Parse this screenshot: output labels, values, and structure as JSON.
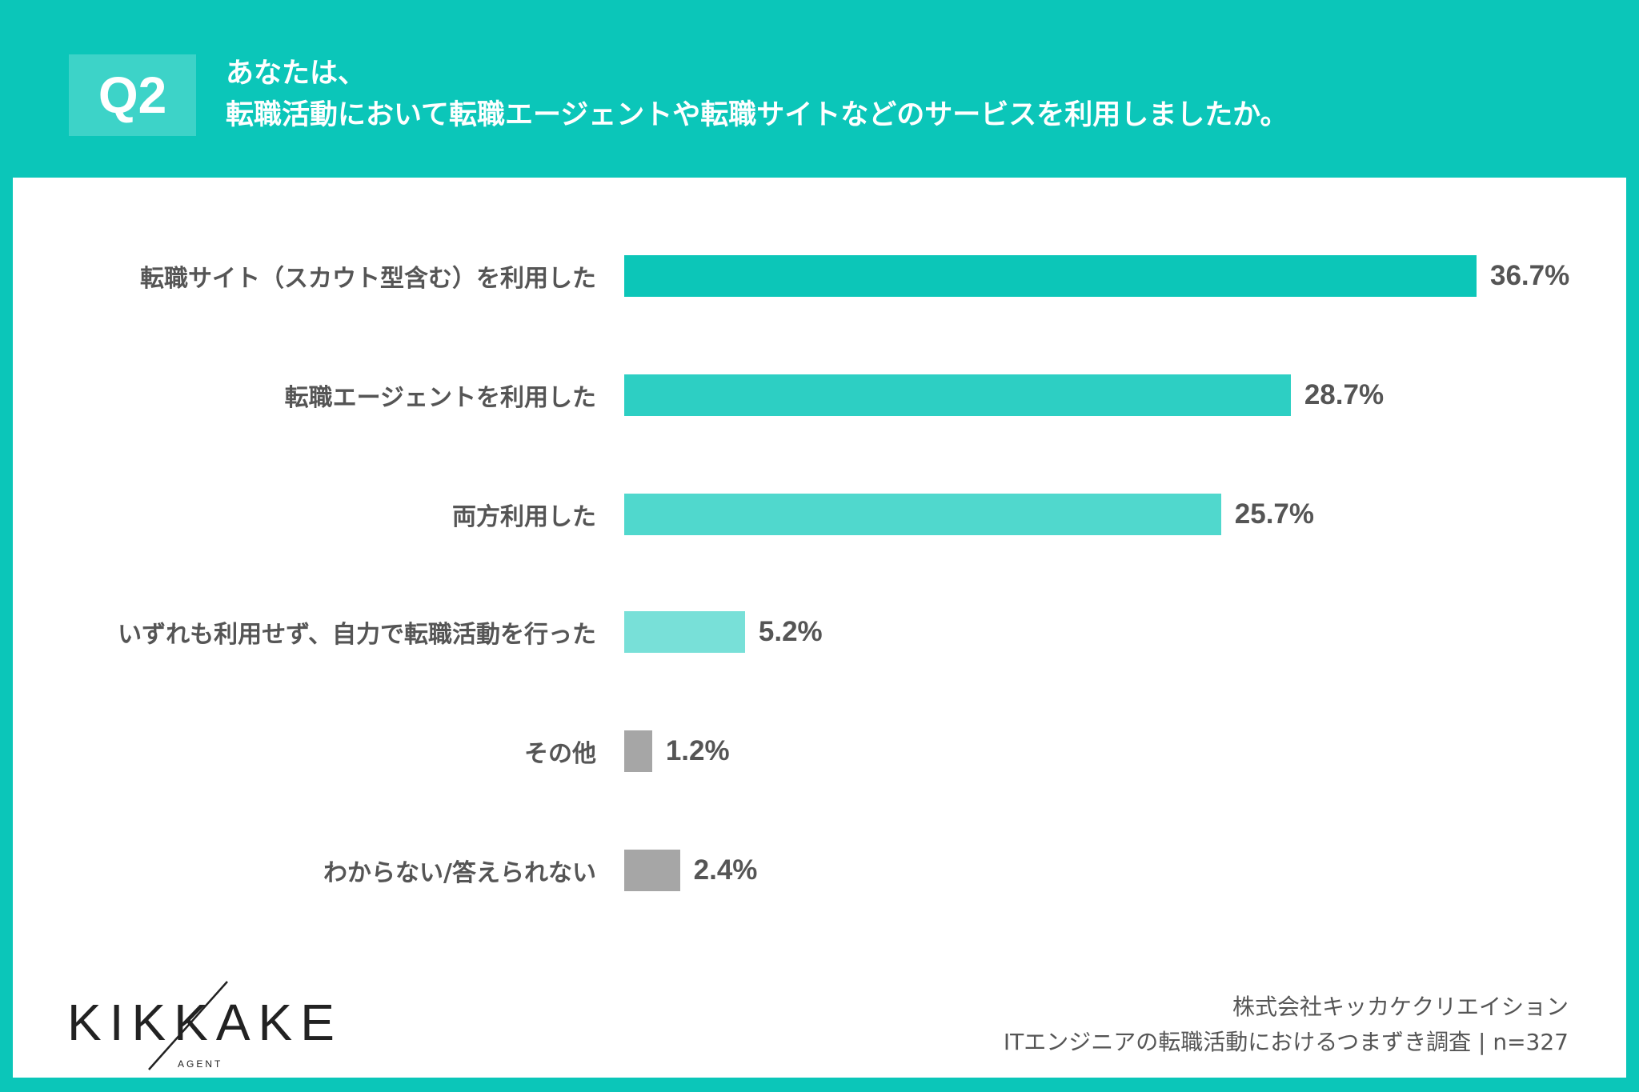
{
  "header": {
    "badge": "Q2",
    "title_line1": "あなたは、",
    "title_line2": "転職活動において転職エージェントや転職サイトなどのサービスを利用しましたか。"
  },
  "chart_data": {
    "type": "bar",
    "orientation": "horizontal",
    "categories": [
      "転職サイト（スカウト型含む）を利用した",
      "転職エージェントを利用した",
      "両方利用した",
      "いずれも利用せず、自力で転職活動を行った",
      "その他",
      "わからない/答えられない"
    ],
    "values": [
      36.7,
      28.7,
      25.7,
      5.2,
      1.2,
      2.4
    ],
    "value_labels": [
      "36.7%",
      "28.7%",
      "25.7%",
      "5.2%",
      "1.2%",
      "2.4%"
    ],
    "colors": [
      "#0cc6b8",
      "#2dcfc3",
      "#50d8cd",
      "#78e0d8",
      "#a6a6a6",
      "#a6a6a6"
    ],
    "unit": "%",
    "grid": false
  },
  "footer": {
    "company": "株式会社キッカケクリエイション",
    "survey": "ITエンジニアの転職活動におけるつまずき調査 | n=327"
  },
  "logo": {
    "text": "KIKKAKE",
    "sub": "AGENT"
  }
}
